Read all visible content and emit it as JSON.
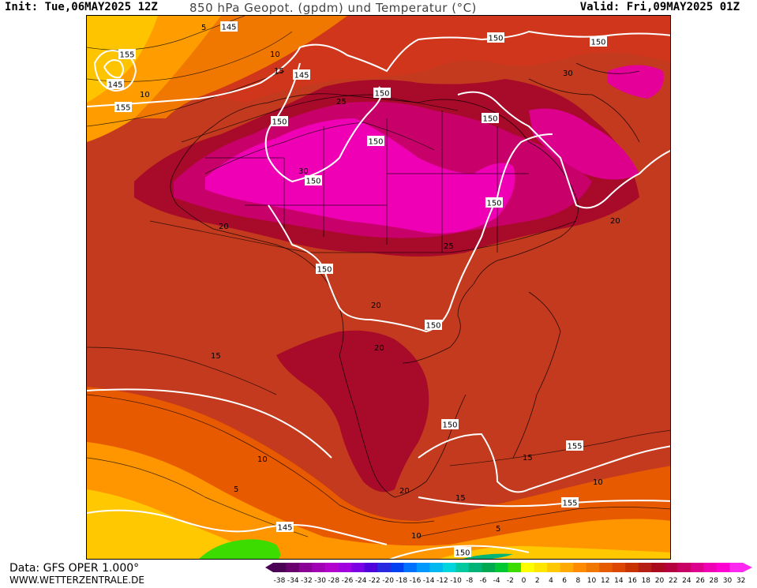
{
  "header": {
    "init": "Init: Tue,06MAY2025 12Z",
    "title": "850 hPa Geopot. (gpdm) und Temperatur (°C)",
    "valid": "Valid: Fri,09MAY2025 01Z"
  },
  "footer": {
    "data_source": "Data: GFS OPER 1.000°",
    "website": "WWW.WETTERZENTRALE.DE"
  },
  "geopotential_labels": [
    {
      "text": "145"
    },
    {
      "text": "145"
    },
    {
      "text": "145"
    },
    {
      "text": "150"
    },
    {
      "text": "150"
    },
    {
      "text": "150"
    },
    {
      "text": "150"
    },
    {
      "text": "150"
    },
    {
      "text": "150"
    },
    {
      "text": "150"
    },
    {
      "text": "150"
    },
    {
      "text": "150"
    },
    {
      "text": "150"
    },
    {
      "text": "150"
    },
    {
      "text": "155"
    },
    {
      "text": "155"
    },
    {
      "text": "155"
    },
    {
      "text": "155"
    },
    {
      "text": "145"
    },
    {
      "text": "150"
    }
  ],
  "temperature_labels": [
    {
      "text": "5"
    },
    {
      "text": "10"
    },
    {
      "text": "15"
    },
    {
      "text": "10"
    },
    {
      "text": "25"
    },
    {
      "text": "30"
    },
    {
      "text": "30"
    },
    {
      "text": "25"
    },
    {
      "text": "20"
    },
    {
      "text": "20"
    },
    {
      "text": "20"
    },
    {
      "text": "20"
    },
    {
      "text": "15"
    },
    {
      "text": "10"
    },
    {
      "text": "5"
    },
    {
      "text": "20"
    },
    {
      "text": "15"
    },
    {
      "text": "15"
    },
    {
      "text": "10"
    },
    {
      "text": "10"
    },
    {
      "text": "5"
    }
  ],
  "colorbar": {
    "colors": [
      "#4b0055",
      "#6a006e",
      "#8a0096",
      "#a200b4",
      "#b400cc",
      "#a000e0",
      "#7b00e6",
      "#5000dc",
      "#2828e0",
      "#0040f0",
      "#0070ff",
      "#0098ff",
      "#00b8f0",
      "#00d4dc",
      "#00c8a0",
      "#00b478",
      "#00a850",
      "#00c832",
      "#3cdc00",
      "#ffff00",
      "#ffe600",
      "#ffc800",
      "#ffaa00",
      "#ff8c00",
      "#f07800",
      "#e65a00",
      "#dc4600",
      "#c83200",
      "#b41e14",
      "#aa0a1e",
      "#b4003c",
      "#c80064",
      "#dc008c",
      "#f000b4",
      "#ff00d2",
      "#ff28f0"
    ],
    "ticks": [
      "-38",
      "-34",
      "-32",
      "-30",
      "-28",
      "-26",
      "-24",
      "-22",
      "-20",
      "-18",
      "-16",
      "-14",
      "-12",
      "-10",
      "-8",
      "-6",
      "-4",
      "-2",
      "0",
      "2",
      "4",
      "6",
      "8",
      "10",
      "12",
      "14",
      "16",
      "18",
      "20",
      "22",
      "24",
      "26",
      "28",
      "30",
      "32"
    ]
  }
}
